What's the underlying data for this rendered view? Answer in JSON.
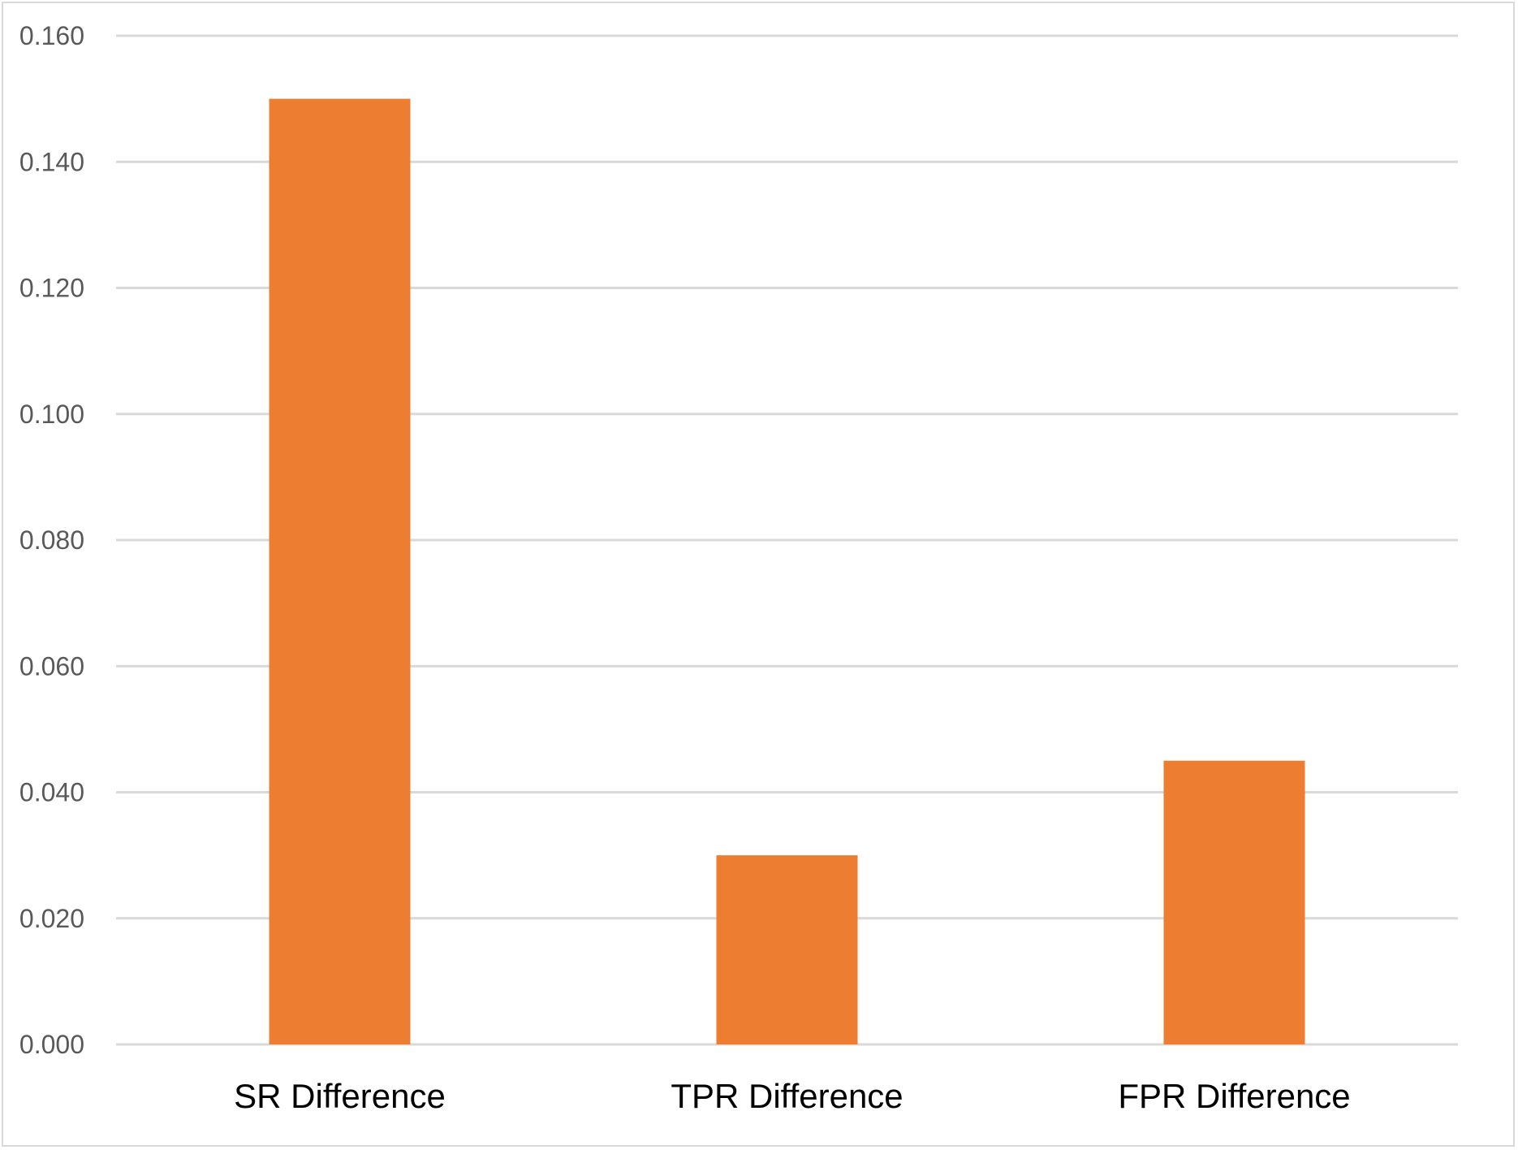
{
  "chart_data": {
    "type": "bar",
    "categories": [
      "SR Difference",
      "TPR Difference",
      "FPR Difference"
    ],
    "values": [
      0.15,
      0.03,
      0.045
    ],
    "ylim": [
      0,
      0.16
    ],
    "yticks": [
      "0.000",
      "0.020",
      "0.040",
      "0.060",
      "0.080",
      "0.100",
      "0.120",
      "0.140",
      "0.160"
    ],
    "ytick_values": [
      0,
      0.02,
      0.04,
      0.06,
      0.08,
      0.1,
      0.12,
      0.14,
      0.16
    ],
    "grid": true,
    "legend": "none",
    "title": "",
    "xlabel": "",
    "ylabel": "",
    "colors": {
      "bar": "#ed7d31",
      "grid": "#d9d9d9",
      "ytick_text": "#595959",
      "xtick_text": "#000000"
    }
  }
}
